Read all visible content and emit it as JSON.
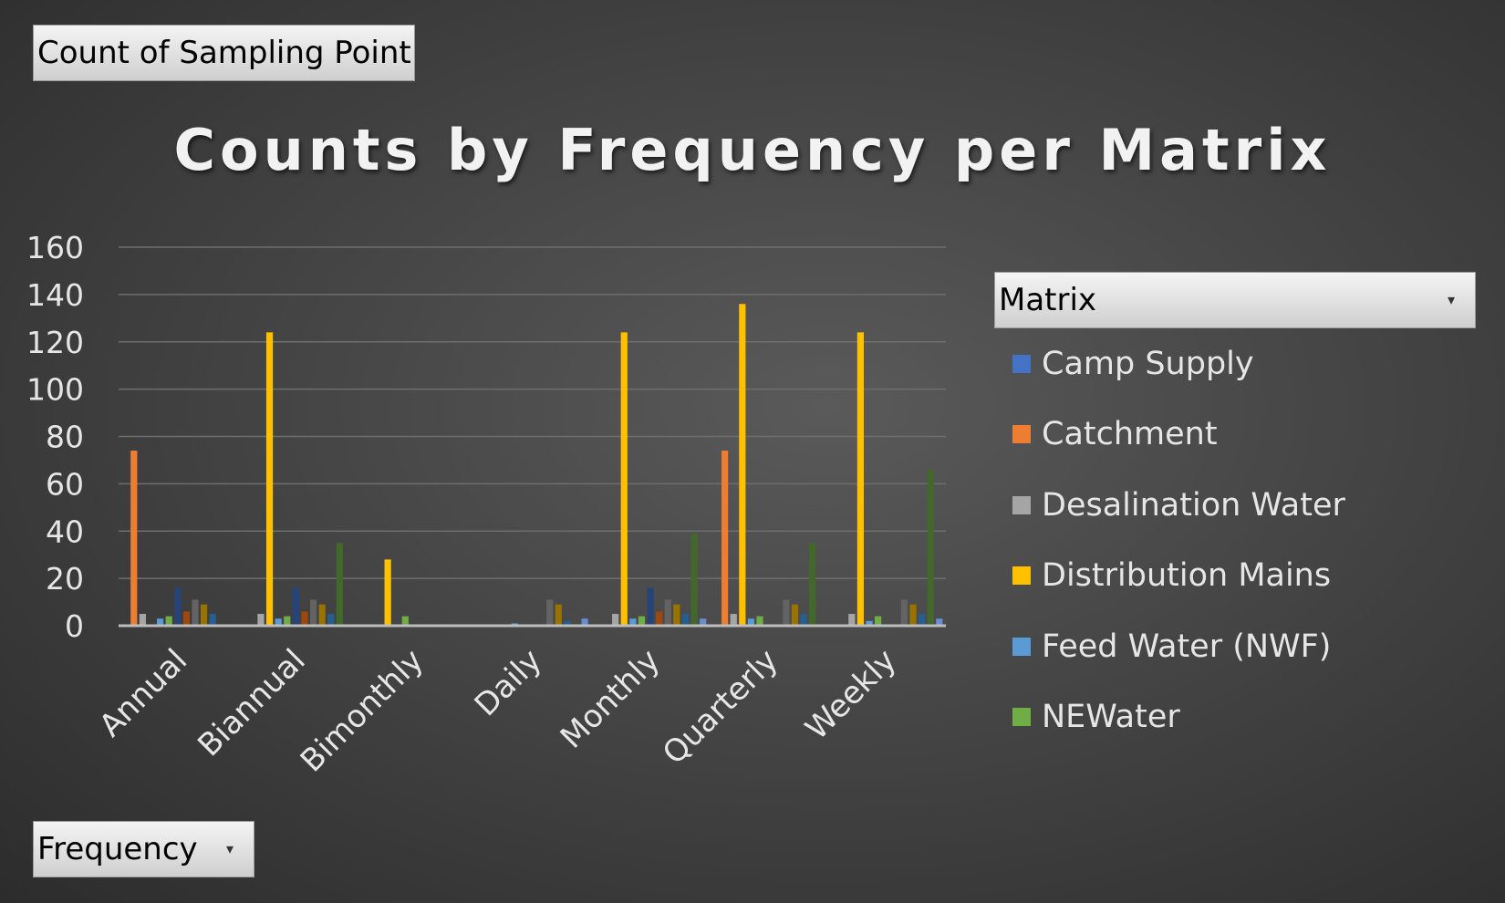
{
  "field_buttons": {
    "values_field": "Count of Sampling Point",
    "axis_field": "Frequency"
  },
  "legend": {
    "header": "Matrix",
    "items": [
      {
        "label": "Camp Supply",
        "color": "#4472c4"
      },
      {
        "label": "Catchment",
        "color": "#ed7d31"
      },
      {
        "label": "Desalination Water",
        "color": "#a5a5a5"
      },
      {
        "label": "Distribution Mains",
        "color": "#ffc000"
      },
      {
        "label": "Feed Water (NWF)",
        "color": "#5b9bd5"
      },
      {
        "label": "NEWater",
        "color": "#70ad47"
      }
    ]
  },
  "chart_data": {
    "type": "bar",
    "title": "Counts by Frequency per Matrix",
    "xlabel": "",
    "ylabel": "",
    "ylim": [
      0,
      160
    ],
    "yticks": [
      0,
      20,
      40,
      60,
      80,
      100,
      120,
      140,
      160
    ],
    "grid": true,
    "legend_position": "right",
    "categories": [
      "Annual",
      "Biannual",
      "Bimonthly",
      "Daily",
      "Monthly",
      "Quarterly",
      "Weekly"
    ],
    "series": [
      {
        "name": "Camp Supply",
        "color": "#4472c4",
        "values": [
          0,
          0,
          0,
          0,
          0,
          0,
          0
        ]
      },
      {
        "name": "Catchment",
        "color": "#ed7d31",
        "values": [
          74,
          0,
          0,
          0,
          0,
          74,
          0
        ]
      },
      {
        "name": "Desalination Water",
        "color": "#a5a5a5",
        "values": [
          5,
          5,
          0,
          0,
          5,
          5,
          5
        ]
      },
      {
        "name": "Distribution Mains",
        "color": "#ffc000",
        "values": [
          0,
          124,
          28,
          0,
          124,
          136,
          124
        ]
      },
      {
        "name": "Feed Water (NWF)",
        "color": "#5b9bd5",
        "values": [
          3,
          3,
          0,
          1,
          3,
          3,
          2
        ]
      },
      {
        "name": "NEWater",
        "color": "#70ad47",
        "values": [
          4,
          4,
          4,
          0,
          4,
          4,
          4
        ]
      },
      {
        "name": "",
        "color": "#264478",
        "values": [
          16,
          16,
          0,
          0,
          16,
          0,
          0
        ]
      },
      {
        "name": "",
        "color": "#9e480e",
        "values": [
          6,
          6,
          0,
          0,
          6,
          0,
          0
        ]
      },
      {
        "name": "",
        "color": "#636363",
        "values": [
          11,
          11,
          0,
          11,
          11,
          11,
          11
        ]
      },
      {
        "name": "",
        "color": "#997300",
        "values": [
          9,
          9,
          0,
          9,
          9,
          9,
          9
        ]
      },
      {
        "name": "",
        "color": "#255e91",
        "values": [
          5,
          5,
          0,
          2,
          5,
          5,
          5
        ]
      },
      {
        "name": "",
        "color": "#43682b",
        "values": [
          0,
          35,
          0,
          0,
          39,
          35,
          66
        ]
      },
      {
        "name": "",
        "color": "#698ed0",
        "values": [
          0,
          0,
          0,
          3,
          3,
          0,
          3
        ]
      }
    ]
  }
}
